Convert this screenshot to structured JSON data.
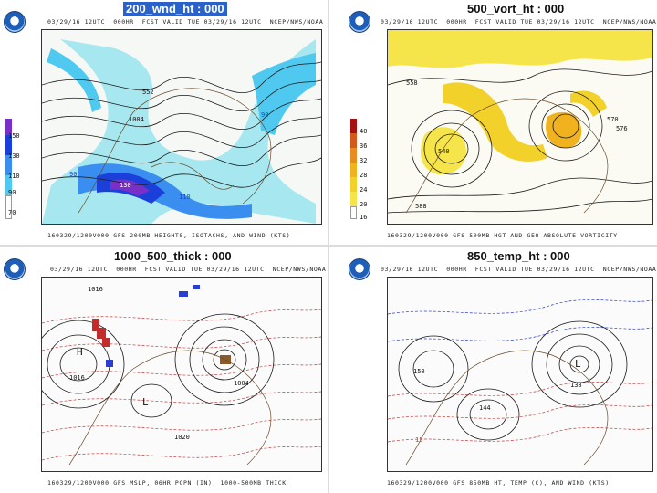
{
  "panels": [
    {
      "title": "200_wnd_ht : 000",
      "header_left": "03/29/16 12UTC  000HR  FCST VALID TUE 03/29/16 12UTC  NCEP/NWS/NOAA",
      "footer": "160329/1200V000 GFS 200MB HEIGHTS, ISOTACHS, AND WIND (KTS)",
      "colorbar_labels": [
        "150",
        "130",
        "110",
        "90",
        "70"
      ],
      "colorbar_colors": [
        "#7b2fc9",
        "#1b3fd9",
        "#3a8ef0",
        "#4fc9ef",
        "#ffffff"
      ]
    },
    {
      "title": "500_vort_ht : 000",
      "header_left": "03/29/16 12UTC  000HR  FCST VALID TUE 03/29/16 12UTC  NCEP/NWS/NOAA",
      "footer": "160329/1200V000 GFS 500MB HGT AND GEO ABSOLUTE VORTICITY",
      "colorbar_labels": [
        "40",
        "36",
        "32",
        "28",
        "24",
        "20",
        "16"
      ],
      "colorbar_colors": [
        "#a81010",
        "#d2581b",
        "#e98c20",
        "#f0b21f",
        "#f3d12b",
        "#f6e54a",
        "#ffffff"
      ]
    },
    {
      "title": "1000_500_thick : 000",
      "header_left": "03/29/16 12UTC  000HR  FCST VALID TUE 03/29/16 12UTC  NCEP/NWS/NOAA",
      "footer": "160329/1200V000 GFS MSLP, 06HR PCPN (IN), 1000-500MB THICK",
      "colorbar_labels": [],
      "colorbar_colors": []
    },
    {
      "title": "850_temp_ht : 000",
      "header_left": "03/29/16 12UTC  000HR  FCST VALID TUE 03/29/16 12UTC  NCEP/NWS/NOAA",
      "footer": "160329/1200V000 GFS 850MB HT, TEMP (C), AND WIND (KTS)",
      "colorbar_labels": [],
      "colorbar_colors": []
    }
  ],
  "map_labels": {
    "p1": [
      "552",
      "1004",
      "90",
      "110",
      "130",
      "90"
    ],
    "p2": [
      "576",
      "588",
      "570",
      "540",
      "558"
    ],
    "p3": [
      "1016",
      "1004",
      "1016",
      "1020",
      "H",
      "L"
    ],
    "p4": [
      "150",
      "138",
      "L",
      "144",
      "15"
    ]
  }
}
